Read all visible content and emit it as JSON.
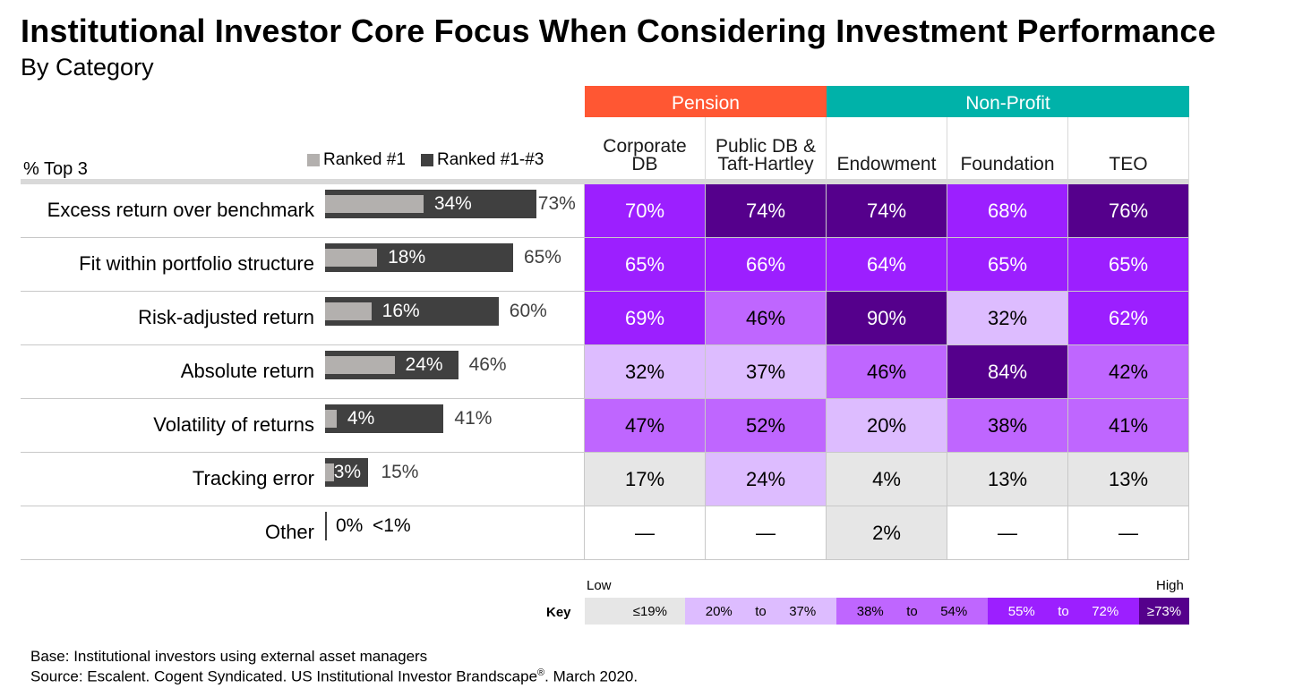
{
  "title": "Institutional Investor Core Focus When Considering Investment Performance",
  "subtitle": "By Category",
  "pct_label": "% Top 3",
  "legend": {
    "ranked1": "Ranked #1",
    "ranked13": "Ranked #1-#3"
  },
  "groups": [
    {
      "label": "Pension",
      "color": "#ff5733"
    },
    {
      "label": "Non-Profit",
      "color": "#00b2a9"
    }
  ],
  "columns": [
    {
      "line1": "Corporate",
      "line2": "DB"
    },
    {
      "line1": "Public DB &",
      "line2": "Taft-Hartley"
    },
    {
      "line1": "",
      "line2": "Endowment"
    },
    {
      "line1": "",
      "line2": "Foundation"
    },
    {
      "line1": "",
      "line2": "TEO"
    }
  ],
  "chart_data": {
    "type": "bar",
    "orientation": "horizontal",
    "title": "Institutional Investor Core Focus When Considering Investment Performance",
    "subtitle": "By Category",
    "ylabel": "% Top 3",
    "categories": [
      "Excess return over benchmark",
      "Fit within portfolio structure",
      "Risk-adjusted return",
      "Absolute return",
      "Volatility of returns",
      "Tracking error",
      "Other"
    ],
    "series": [
      {
        "name": "Ranked #1",
        "values": [
          34,
          18,
          16,
          24,
          4,
          3,
          0
        ],
        "labels": [
          "34%",
          "18%",
          "16%",
          "24%",
          "4%",
          "3%",
          "0%"
        ],
        "color": "#b3b0ae"
      },
      {
        "name": "Ranked #1-#3",
        "values": [
          73,
          65,
          60,
          46,
          41,
          15,
          0.5
        ],
        "labels": [
          "73%",
          "65%",
          "60%",
          "46%",
          "41%",
          "15%",
          "<1%"
        ],
        "color": "#404040"
      }
    ],
    "xlim": [
      0,
      100
    ],
    "table": {
      "columns": [
        "Corporate DB",
        "Public DB & Taft-Hartley",
        "Endowment",
        "Foundation",
        "TEO"
      ],
      "rows": [
        [
          "70%",
          "74%",
          "74%",
          "68%",
          "76%"
        ],
        [
          "65%",
          "66%",
          "64%",
          "65%",
          "65%"
        ],
        [
          "69%",
          "46%",
          "90%",
          "32%",
          "62%"
        ],
        [
          "32%",
          "37%",
          "46%",
          "84%",
          "42%"
        ],
        [
          "47%",
          "52%",
          "20%",
          "38%",
          "41%"
        ],
        [
          "17%",
          "24%",
          "4%",
          "13%",
          "13%"
        ],
        [
          "—",
          "—",
          "2%",
          "—",
          "—"
        ]
      ]
    }
  },
  "key": {
    "label": "Key",
    "low": "Low",
    "high": "High",
    "segments": [
      {
        "parts": [
          "≤19%"
        ],
        "color": "#e6e6e6",
        "text": "#000000"
      },
      {
        "parts": [
          "20%",
          "to",
          "37%"
        ],
        "color": "#ddbcff",
        "text": "#000000"
      },
      {
        "parts": [
          "38%",
          "to",
          "54%"
        ],
        "color": "#bf66ff",
        "text": "#000000"
      },
      {
        "parts": [
          "55%",
          "to",
          "72%"
        ],
        "color": "#9c1fff",
        "text": "#ffffff"
      },
      {
        "parts": [
          "≥73%"
        ],
        "color": "#55008c",
        "text": "#ffffff"
      }
    ]
  },
  "notes": {
    "base": "Base: Institutional investors using external asset managers",
    "source_pre": "Source: Escalent. Cogent Syndicated. US Institutional Investor Brandscape",
    "source_reg": "®",
    "source_post": ". March 2020."
  }
}
